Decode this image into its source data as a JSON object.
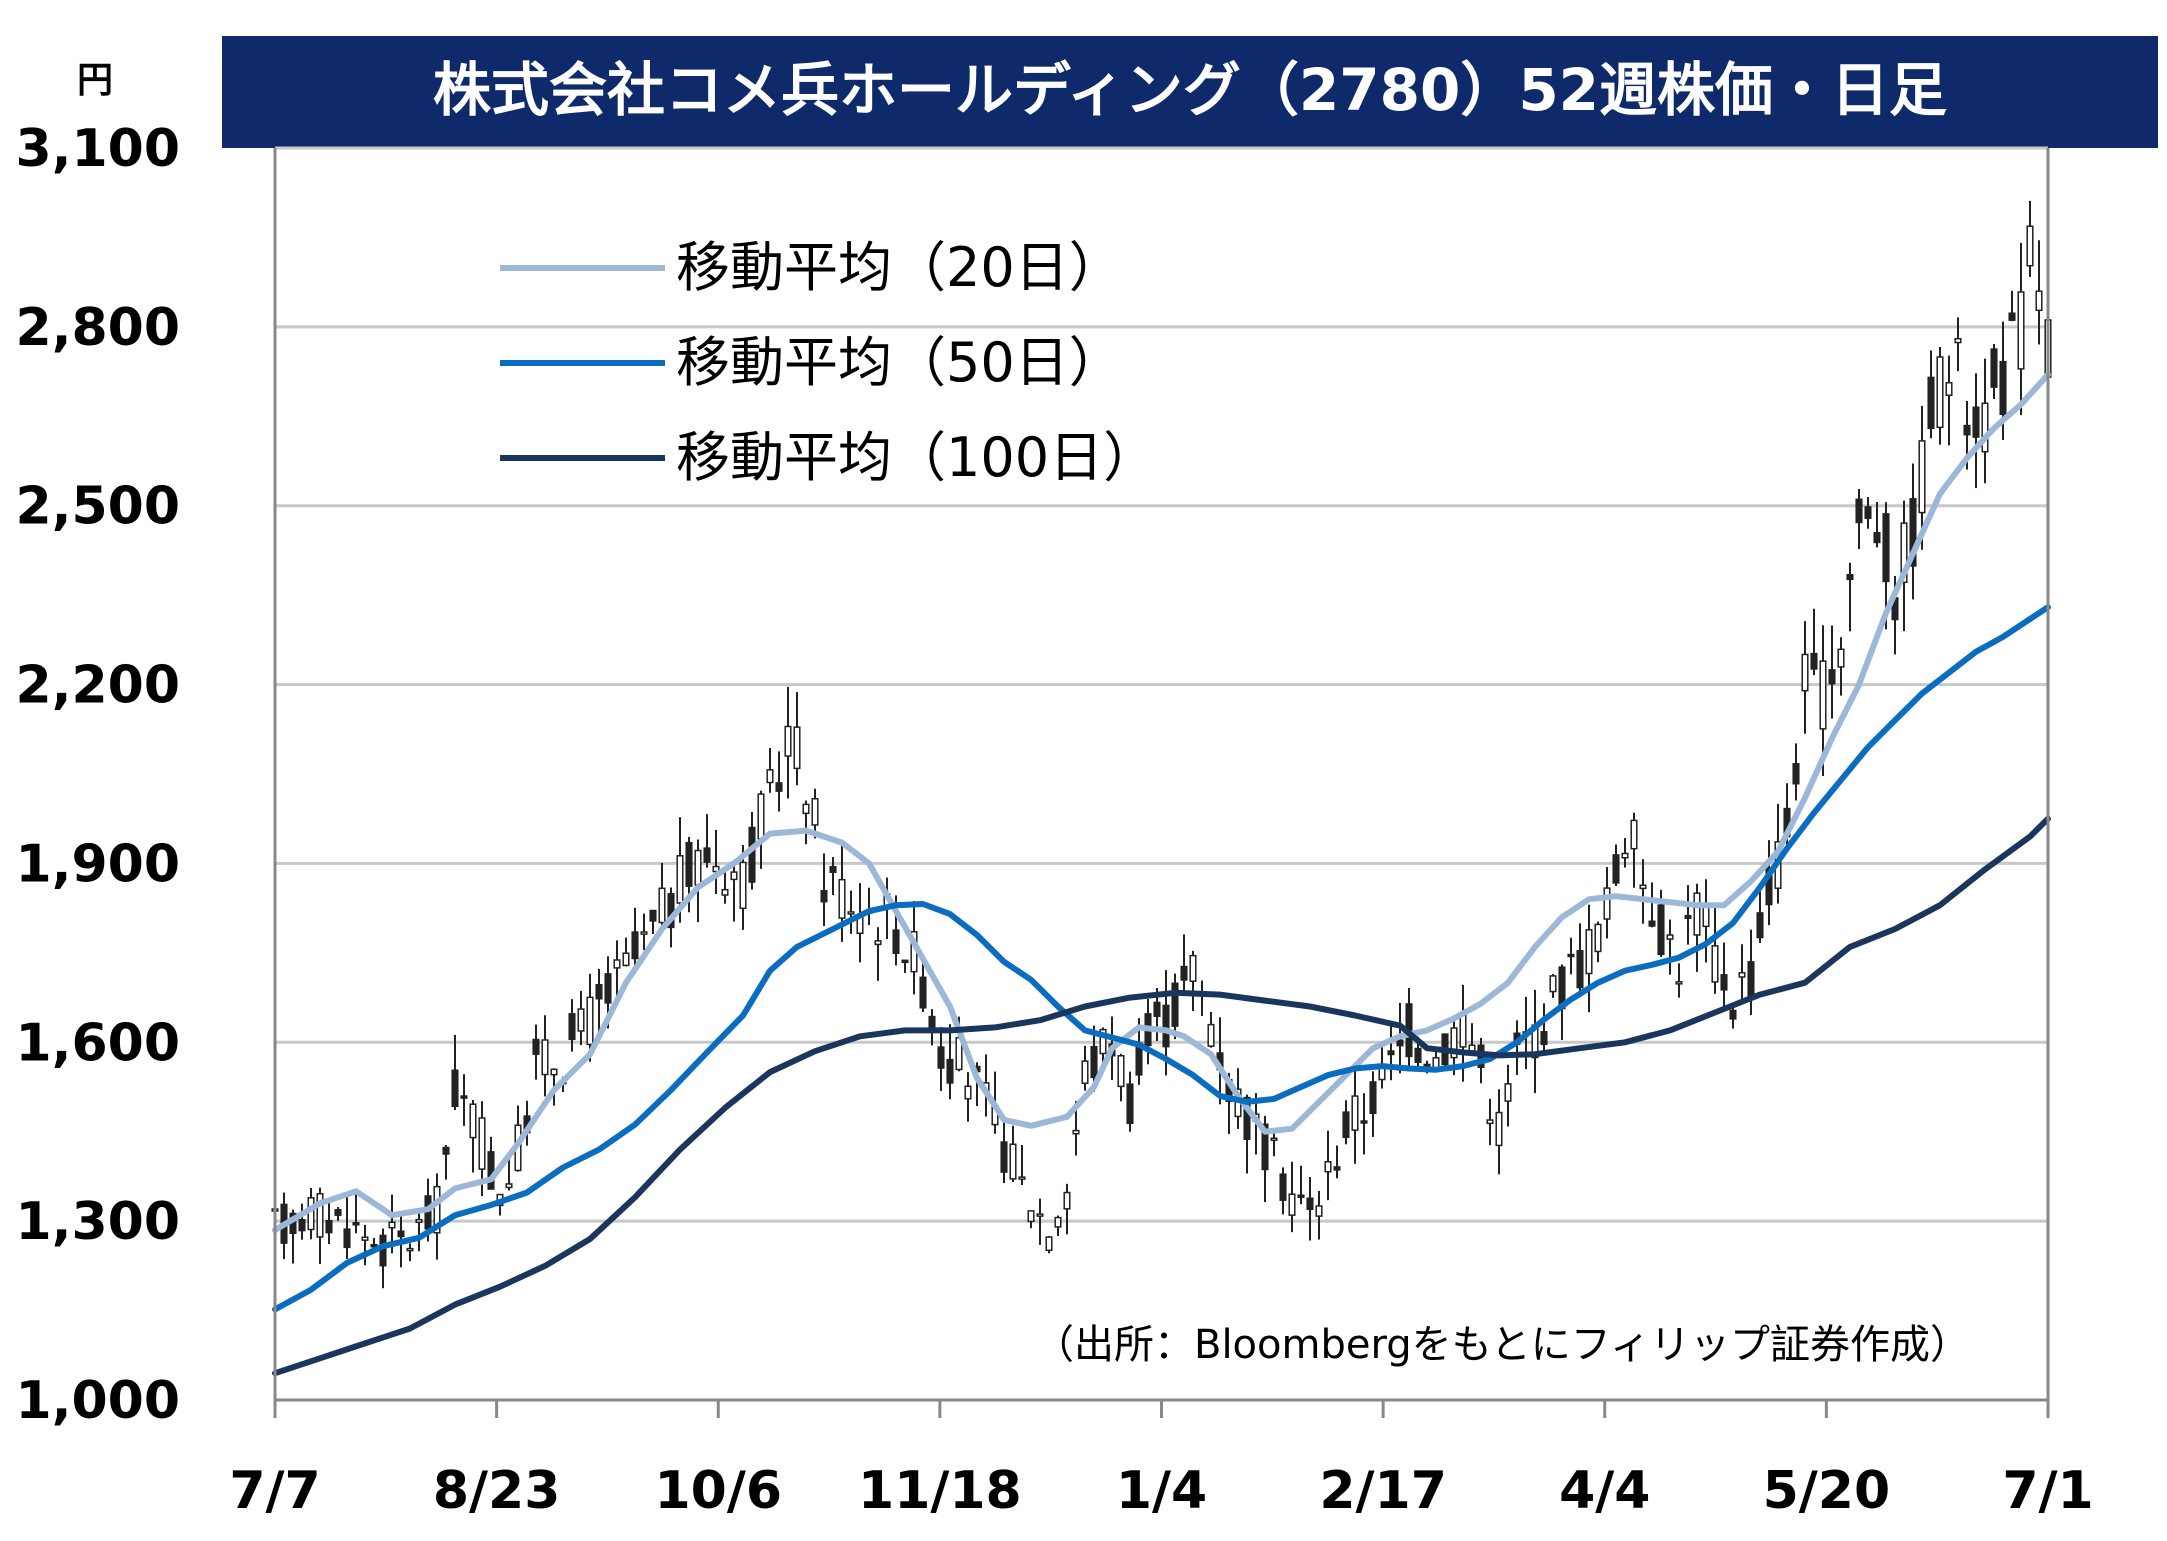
{
  "chart_data": {
    "type": "candlestick",
    "title": "株式会社コメ兵ホールディング（2780）52週株価・日足",
    "y_unit": "円",
    "ylim": [
      1000,
      3100
    ],
    "yticks": [
      1000,
      1300,
      1600,
      1900,
      2200,
      2500,
      2800,
      3100
    ],
    "ytick_labels": [
      "1,000",
      "1,300",
      "1,600",
      "1,900",
      "2,200",
      "2,500",
      "2,800",
      "3,100"
    ],
    "xtick_labels": [
      "7/7",
      "8/23",
      "10/6",
      "11/18",
      "1/4",
      "2/17",
      "4/4",
      "5/20",
      "7/1"
    ],
    "grid": true,
    "legend_position": "top-left",
    "source_note": "（出所：Bloombergをもとにフィリップ証券作成）",
    "ohlc_trend": [
      {
        "x": 0,
        "v": 1285
      },
      {
        "x": 4,
        "v": 1320
      },
      {
        "x": 8,
        "v": 1295
      },
      {
        "x": 12,
        "v": 1260
      },
      {
        "x": 15,
        "v": 1270
      },
      {
        "x": 18,
        "v": 1320
      },
      {
        "x": 20,
        "v": 1520
      },
      {
        "x": 22,
        "v": 1470
      },
      {
        "x": 25,
        "v": 1350
      },
      {
        "x": 27,
        "v": 1420
      },
      {
        "x": 29,
        "v": 1560
      },
      {
        "x": 32,
        "v": 1580
      },
      {
        "x": 35,
        "v": 1640
      },
      {
        "x": 38,
        "v": 1700
      },
      {
        "x": 41,
        "v": 1760
      },
      {
        "x": 45,
        "v": 1860
      },
      {
        "x": 48,
        "v": 1920
      },
      {
        "x": 52,
        "v": 1880
      },
      {
        "x": 55,
        "v": 2000
      },
      {
        "x": 57,
        "v": 2120
      },
      {
        "x": 59,
        "v": 2040
      },
      {
        "x": 61,
        "v": 1880
      },
      {
        "x": 65,
        "v": 1830
      },
      {
        "x": 69,
        "v": 1800
      },
      {
        "x": 72,
        "v": 1710
      },
      {
        "x": 74,
        "v": 1590
      },
      {
        "x": 77,
        "v": 1550
      },
      {
        "x": 80,
        "v": 1460
      },
      {
        "x": 83,
        "v": 1360
      },
      {
        "x": 86,
        "v": 1290
      },
      {
        "x": 88,
        "v": 1360
      },
      {
        "x": 90,
        "v": 1550
      },
      {
        "x": 93,
        "v": 1610
      },
      {
        "x": 95,
        "v": 1510
      },
      {
        "x": 97,
        "v": 1600
      },
      {
        "x": 100,
        "v": 1660
      },
      {
        "x": 102,
        "v": 1720
      },
      {
        "x": 104,
        "v": 1640
      },
      {
        "x": 106,
        "v": 1530
      },
      {
        "x": 108,
        "v": 1480
      },
      {
        "x": 110,
        "v": 1420
      },
      {
        "x": 113,
        "v": 1350
      },
      {
        "x": 115,
        "v": 1310
      },
      {
        "x": 117,
        "v": 1380
      },
      {
        "x": 119,
        "v": 1460
      },
      {
        "x": 121,
        "v": 1490
      },
      {
        "x": 124,
        "v": 1560
      },
      {
        "x": 126,
        "v": 1620
      },
      {
        "x": 129,
        "v": 1580
      },
      {
        "x": 132,
        "v": 1640
      },
      {
        "x": 134,
        "v": 1560
      },
      {
        "x": 136,
        "v": 1460
      },
      {
        "x": 138,
        "v": 1580
      },
      {
        "x": 140,
        "v": 1620
      },
      {
        "x": 143,
        "v": 1700
      },
      {
        "x": 146,
        "v": 1760
      },
      {
        "x": 148,
        "v": 1820
      },
      {
        "x": 150,
        "v": 1960
      },
      {
        "x": 152,
        "v": 1880
      },
      {
        "x": 154,
        "v": 1800
      },
      {
        "x": 156,
        "v": 1740
      },
      {
        "x": 158,
        "v": 1830
      },
      {
        "x": 160,
        "v": 1740
      },
      {
        "x": 162,
        "v": 1680
      },
      {
        "x": 164,
        "v": 1720
      },
      {
        "x": 166,
        "v": 1860
      },
      {
        "x": 168,
        "v": 1960
      },
      {
        "x": 170,
        "v": 2200
      },
      {
        "x": 172,
        "v": 2180
      },
      {
        "x": 174,
        "v": 2290
      },
      {
        "x": 176,
        "v": 2480
      },
      {
        "x": 178,
        "v": 2480
      },
      {
        "x": 180,
        "v": 2360
      },
      {
        "x": 182,
        "v": 2460
      },
      {
        "x": 184,
        "v": 2660
      },
      {
        "x": 186,
        "v": 2740
      },
      {
        "x": 188,
        "v": 2680
      },
      {
        "x": 190,
        "v": 2660
      },
      {
        "x": 192,
        "v": 2720
      },
      {
        "x": 194,
        "v": 2800
      },
      {
        "x": 195,
        "v": 2930
      },
      {
        "x": 196,
        "v": 2880
      },
      {
        "x": 197,
        "v": 2780
      }
    ],
    "x_count": 198,
    "series": [
      {
        "name": "移動平均（20日）",
        "color": "#9db7d9",
        "points": [
          [
            0,
            1285
          ],
          [
            5,
            1330
          ],
          [
            9,
            1350
          ],
          [
            13,
            1310
          ],
          [
            17,
            1320
          ],
          [
            20,
            1355
          ],
          [
            24,
            1370
          ],
          [
            27,
            1430
          ],
          [
            31,
            1520
          ],
          [
            35,
            1580
          ],
          [
            39,
            1700
          ],
          [
            43,
            1790
          ],
          [
            47,
            1860
          ],
          [
            51,
            1900
          ],
          [
            55,
            1950
          ],
          [
            59,
            1955
          ],
          [
            63,
            1935
          ],
          [
            66,
            1900
          ],
          [
            69,
            1820
          ],
          [
            72,
            1740
          ],
          [
            75,
            1660
          ],
          [
            78,
            1540
          ],
          [
            81,
            1470
          ],
          [
            84,
            1460
          ],
          [
            88,
            1475
          ],
          [
            91,
            1525
          ],
          [
            93,
            1590
          ],
          [
            96,
            1625
          ],
          [
            99,
            1620
          ],
          [
            101,
            1610
          ],
          [
            104,
            1580
          ],
          [
            107,
            1510
          ],
          [
            110,
            1450
          ],
          [
            113,
            1455
          ],
          [
            116,
            1500
          ],
          [
            119,
            1545
          ],
          [
            122,
            1590
          ],
          [
            125,
            1610
          ],
          [
            128,
            1620
          ],
          [
            131,
            1640
          ],
          [
            134,
            1665
          ],
          [
            137,
            1700
          ],
          [
            140,
            1760
          ],
          [
            143,
            1810
          ],
          [
            146,
            1840
          ],
          [
            149,
            1845
          ],
          [
            152,
            1840
          ],
          [
            155,
            1835
          ],
          [
            158,
            1830
          ],
          [
            161,
            1830
          ],
          [
            164,
            1870
          ],
          [
            167,
            1920
          ],
          [
            170,
            2010
          ],
          [
            173,
            2110
          ],
          [
            176,
            2200
          ],
          [
            179,
            2320
          ],
          [
            182,
            2420
          ],
          [
            185,
            2520
          ],
          [
            188,
            2580
          ],
          [
            191,
            2630
          ],
          [
            194,
            2670
          ],
          [
            197,
            2720
          ]
        ]
      },
      {
        "name": "移動平均（50日）",
        "color": "#0b6dbf",
        "points": [
          [
            0,
            1152
          ],
          [
            4,
            1185
          ],
          [
            8,
            1230
          ],
          [
            12,
            1258
          ],
          [
            16,
            1272
          ],
          [
            20,
            1310
          ],
          [
            24,
            1327
          ],
          [
            28,
            1348
          ],
          [
            32,
            1390
          ],
          [
            36,
            1420
          ],
          [
            40,
            1462
          ],
          [
            44,
            1520
          ],
          [
            48,
            1583
          ],
          [
            52,
            1645
          ],
          [
            55,
            1720
          ],
          [
            58,
            1760
          ],
          [
            62,
            1790
          ],
          [
            66,
            1820
          ],
          [
            69,
            1830
          ],
          [
            72,
            1832
          ],
          [
            75,
            1815
          ],
          [
            78,
            1780
          ],
          [
            81,
            1735
          ],
          [
            84,
            1705
          ],
          [
            87,
            1660
          ],
          [
            90,
            1620
          ],
          [
            93,
            1608
          ],
          [
            96,
            1596
          ],
          [
            99,
            1572
          ],
          [
            102,
            1545
          ],
          [
            105,
            1510
          ],
          [
            108,
            1500
          ],
          [
            111,
            1505
          ],
          [
            114,
            1525
          ],
          [
            117,
            1545
          ],
          [
            120,
            1556
          ],
          [
            123,
            1560
          ],
          [
            126,
            1556
          ],
          [
            129,
            1554
          ],
          [
            132,
            1560
          ],
          [
            135,
            1572
          ],
          [
            138,
            1600
          ],
          [
            141,
            1638
          ],
          [
            144,
            1672
          ],
          [
            147,
            1700
          ],
          [
            150,
            1720
          ],
          [
            153,
            1730
          ],
          [
            156,
            1742
          ],
          [
            159,
            1765
          ],
          [
            162,
            1800
          ],
          [
            165,
            1860
          ],
          [
            168,
            1925
          ],
          [
            171,
            1985
          ],
          [
            174,
            2040
          ],
          [
            177,
            2095
          ],
          [
            180,
            2140
          ],
          [
            183,
            2185
          ],
          [
            186,
            2220
          ],
          [
            189,
            2255
          ],
          [
            192,
            2280
          ],
          [
            195,
            2310
          ],
          [
            197,
            2330
          ]
        ]
      },
      {
        "name": "移動平均（100日）",
        "color": "#1b365d",
        "points": [
          [
            0,
            1045
          ],
          [
            5,
            1070
          ],
          [
            10,
            1095
          ],
          [
            15,
            1120
          ],
          [
            20,
            1160
          ],
          [
            25,
            1190
          ],
          [
            30,
            1225
          ],
          [
            35,
            1270
          ],
          [
            40,
            1340
          ],
          [
            45,
            1420
          ],
          [
            50,
            1490
          ],
          [
            55,
            1550
          ],
          [
            60,
            1585
          ],
          [
            65,
            1610
          ],
          [
            70,
            1620
          ],
          [
            75,
            1620
          ],
          [
            80,
            1625
          ],
          [
            85,
            1637
          ],
          [
            90,
            1660
          ],
          [
            95,
            1675
          ],
          [
            100,
            1683
          ],
          [
            105,
            1680
          ],
          [
            110,
            1670
          ],
          [
            115,
            1660
          ],
          [
            120,
            1645
          ],
          [
            125,
            1628
          ],
          [
            128,
            1590
          ],
          [
            132,
            1583
          ],
          [
            136,
            1578
          ],
          [
            140,
            1580
          ],
          [
            145,
            1590
          ],
          [
            150,
            1600
          ],
          [
            155,
            1620
          ],
          [
            160,
            1650
          ],
          [
            165,
            1680
          ],
          [
            170,
            1700
          ],
          [
            175,
            1760
          ],
          [
            180,
            1790
          ],
          [
            185,
            1830
          ],
          [
            190,
            1890
          ],
          [
            195,
            1945
          ],
          [
            197,
            1975
          ]
        ]
      }
    ]
  }
}
